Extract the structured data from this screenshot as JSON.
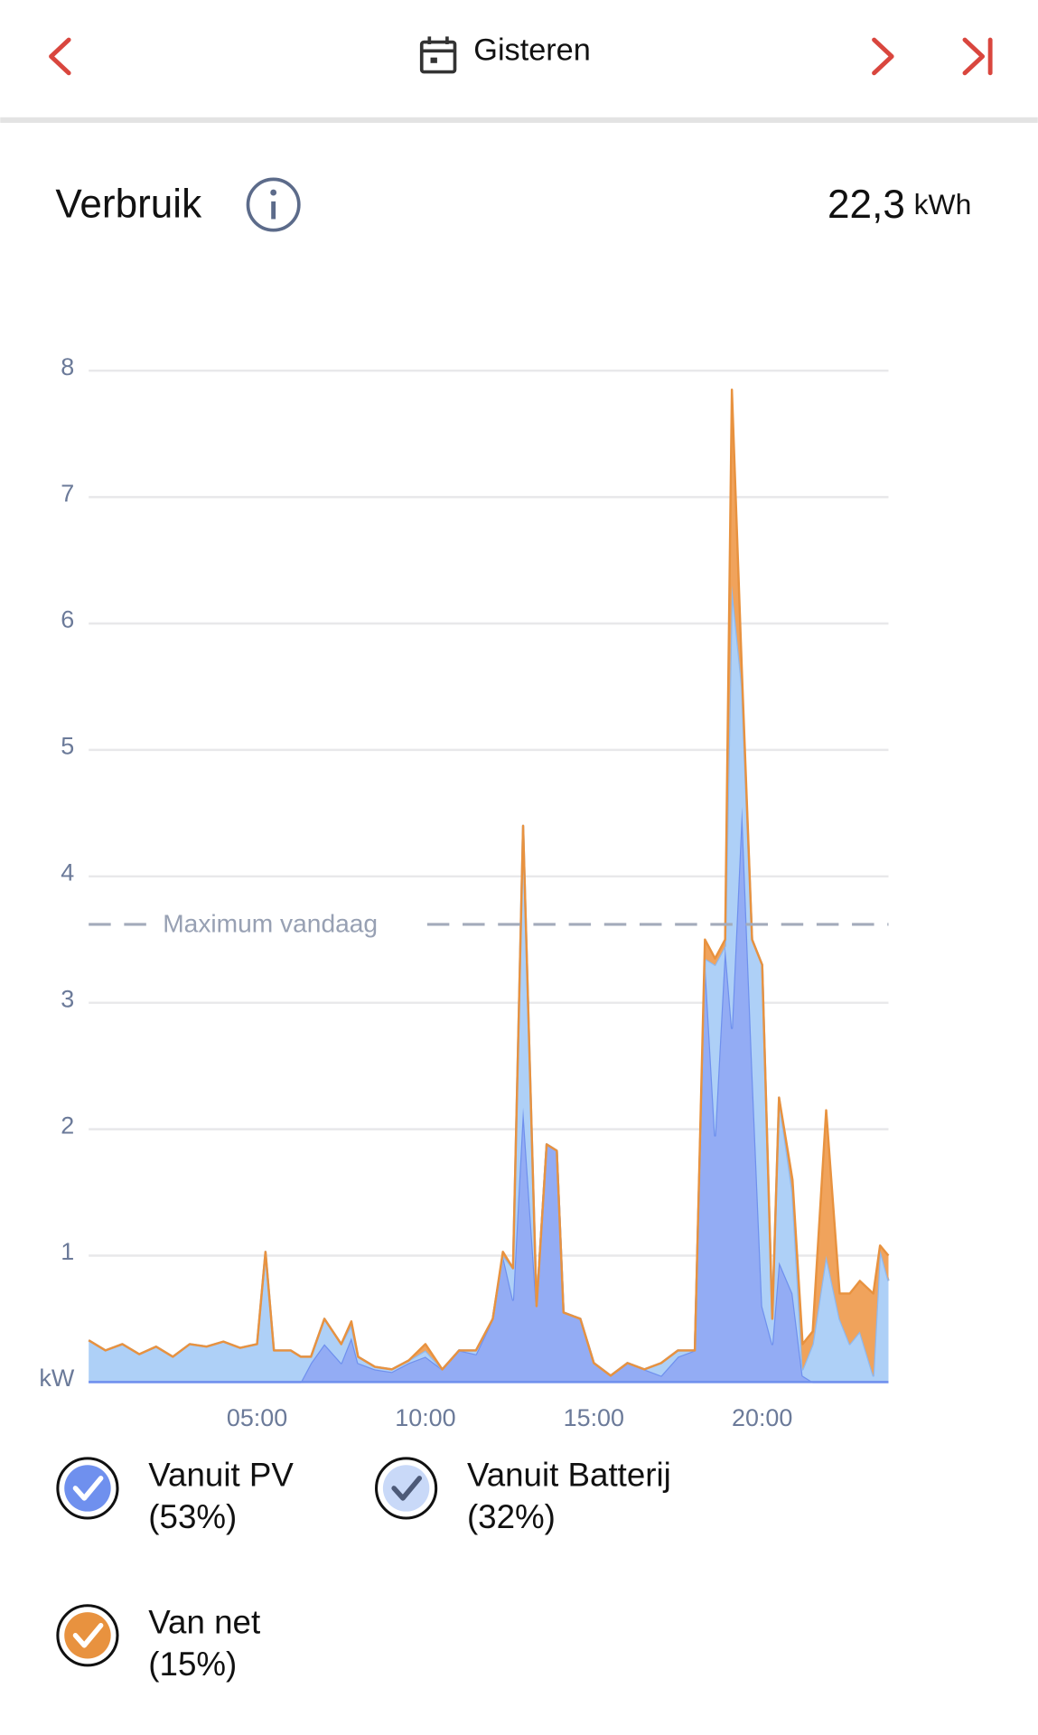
{
  "header": {
    "title": "Gisteren"
  },
  "summary": {
    "title": "Verbruik",
    "value": "22,3",
    "unit": "kWh"
  },
  "chart_data": {
    "type": "stacked-area",
    "x": [
      0,
      0.5,
      1,
      1.5,
      2,
      2.5,
      3,
      3.5,
      4,
      4.5,
      5,
      5.25,
      5.5,
      6,
      6.3,
      6.6,
      7,
      7.5,
      7.8,
      8,
      8.5,
      9,
      9.5,
      10,
      10.5,
      11,
      11.5,
      12,
      12.3,
      12.6,
      12.9,
      13.3,
      13.6,
      13.9,
      14.1,
      14.6,
      15,
      15.5,
      16,
      16.5,
      17,
      17.5,
      18,
      18.3,
      18.6,
      18.9,
      19.1,
      19.4,
      19.7,
      20,
      20.3,
      20.5,
      20.9,
      21.2,
      21.5,
      21.9,
      22.3,
      22.6,
      22.9,
      23.3,
      23.5,
      23.75
    ],
    "series": [
      {
        "name": "Vanuit PV",
        "share": 53,
        "share_label": "(53%)",
        "color": "#93acf4",
        "line_color": "#6f90ee",
        "values": [
          0,
          0,
          0,
          0,
          0,
          0,
          0,
          0,
          0,
          0,
          0,
          0,
          0,
          0,
          0,
          0.15,
          0.3,
          0.15,
          0.35,
          0.15,
          0.1,
          0.08,
          0.15,
          0.2,
          0.1,
          0.25,
          0.22,
          0.5,
          1,
          0.65,
          2.17,
          0.6,
          1.88,
          1.83,
          0.55,
          0.5,
          0.15,
          0.05,
          0.15,
          0.1,
          0.05,
          0.2,
          0.25,
          3.35,
          1.95,
          3.45,
          2.8,
          4.55,
          2.5,
          0.6,
          0.3,
          0.95,
          0.7,
          0.05,
          0,
          0,
          0,
          0,
          0,
          0,
          0,
          0
        ]
      },
      {
        "name": "Vanuit Batterij",
        "share": 32,
        "share_label": "(32%)",
        "color": "#aed0f7",
        "line_color": "#8fb8ee",
        "values": [
          0.33,
          0.25,
          0.3,
          0.22,
          0.28,
          0.2,
          0.3,
          0.28,
          0.32,
          0.27,
          0.3,
          1.03,
          0.25,
          0.25,
          0.2,
          0.05,
          0.2,
          0.15,
          0.1,
          0.05,
          0.02,
          0.02,
          0.02,
          0.05,
          0,
          0,
          0.03,
          0,
          0,
          0.25,
          2.23,
          0,
          0,
          0,
          0,
          0,
          0,
          0,
          0,
          0,
          0.1,
          0.05,
          0,
          0,
          1.35,
          0,
          3.5,
          0.95,
          1.0,
          2.7,
          0.2,
          1.3,
          0.8,
          0.05,
          0.3,
          1.0,
          0.5,
          0.3,
          0.4,
          0.05,
          1.05,
          0.8
        ]
      },
      {
        "name": "Van net",
        "share": 15,
        "share_label": "(15%)",
        "color": "#f0a35c",
        "line_color": "#e8923f",
        "values": [
          0,
          0,
          0,
          0,
          0,
          0,
          0,
          0,
          0,
          0,
          0,
          0,
          0,
          0,
          0,
          0,
          0,
          0,
          0.03,
          0,
          0,
          0,
          0,
          0.05,
          0,
          0,
          0,
          0,
          0.03,
          0,
          0,
          0,
          0,
          0,
          0,
          0,
          0,
          0,
          0,
          0,
          0,
          0,
          0,
          0.15,
          0.05,
          0.05,
          1.55,
          0.1,
          0,
          0,
          0,
          0,
          0.1,
          0.2,
          0.1,
          1.15,
          0.2,
          0.4,
          0.4,
          0.65,
          0.03,
          0.2
        ]
      }
    ],
    "xlim": [
      0,
      23.75
    ],
    "xticks": [
      {
        "value": 5,
        "label": "05:00"
      },
      {
        "value": 10,
        "label": "10:00"
      },
      {
        "value": 15,
        "label": "15:00"
      },
      {
        "value": 20,
        "label": "20:00"
      }
    ],
    "ylim": [
      0,
      8
    ],
    "yticks": [
      {
        "value": 0,
        "label": "kW"
      },
      1,
      2,
      3,
      4,
      5,
      6,
      7,
      8
    ],
    "grid": true,
    "annotation": {
      "label": "Maximum vandaag",
      "value": 3.62
    }
  }
}
